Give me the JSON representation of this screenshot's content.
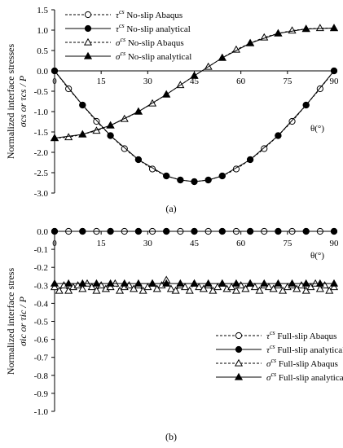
{
  "chart_data": [
    {
      "panel": "(a)",
      "type": "line",
      "xlabel": "θ(°)",
      "ylabel_line1": "Normalized interface stresses",
      "ylabel_line2": "σcs or τcs / P",
      "xlim": [
        0,
        90
      ],
      "ylim": [
        -3.0,
        1.5
      ],
      "xticks": [
        "0",
        "15",
        "30",
        "45",
        "60",
        "75",
        "90"
      ],
      "yticks": [
        "1.5",
        "1.0",
        "0.5",
        "0.0",
        "-0.5",
        "-1.0",
        "-1.5",
        "-2.0",
        "-2.5",
        "-3.0"
      ],
      "ytick_values": [
        1.5,
        1.0,
        0.5,
        0.0,
        -0.5,
        -1.0,
        -1.5,
        -2.0,
        -2.5,
        -3.0
      ],
      "legend_position": "top-left",
      "series": [
        {
          "name": "τcs No-slip Abaqus",
          "symbol": "τ",
          "sup": "cs",
          "desc": "No-slip Abaqus",
          "marker": "circle-open",
          "dash": true,
          "x": [
            0,
            4.5,
            9,
            13.5,
            18,
            22.5,
            27,
            31.5,
            36,
            40.5,
            45,
            49.5,
            54,
            58.5,
            63,
            67.5,
            72,
            76.5,
            81,
            85.5,
            90
          ],
          "y": [
            0.0,
            -0.44,
            -0.84,
            -1.24,
            -1.59,
            -1.91,
            -2.18,
            -2.41,
            -2.58,
            -2.68,
            -2.72,
            -2.68,
            -2.58,
            -2.41,
            -2.18,
            -1.91,
            -1.59,
            -1.24,
            -0.84,
            -0.44,
            0.0
          ]
        },
        {
          "name": "τcs No-slip analytical",
          "symbol": "τ",
          "sup": "cs",
          "desc": "No-slip analytical",
          "marker": "circle-filled",
          "dash": false,
          "x": [
            0,
            9,
            18,
            27,
            36,
            40.5,
            45,
            49.5,
            54,
            63,
            72,
            81,
            90
          ],
          "y": [
            0.0,
            -0.84,
            -1.59,
            -2.18,
            -2.58,
            -2.68,
            -2.72,
            -2.68,
            -2.58,
            -2.18,
            -1.59,
            -0.84,
            0.0
          ]
        },
        {
          "name": "σcs No-slip Abaqus",
          "symbol": "σ",
          "sup": "cs",
          "desc": "No-slip Abaqus",
          "marker": "triangle-open",
          "dash": true,
          "x": [
            0,
            4.5,
            9,
            13.5,
            18,
            22.5,
            27,
            31.5,
            36,
            40.5,
            45,
            49.5,
            54,
            58.5,
            63,
            67.5,
            72,
            76.5,
            81,
            85.5,
            90
          ],
          "y": [
            -1.65,
            -1.63,
            -1.56,
            -1.47,
            -1.34,
            -1.18,
            -1.0,
            -0.8,
            -0.58,
            -0.35,
            -0.12,
            0.1,
            0.32,
            0.52,
            0.68,
            0.82,
            0.92,
            0.99,
            1.03,
            1.05,
            1.05
          ]
        },
        {
          "name": "σcs No-slip analytical",
          "symbol": "σ",
          "sup": "cs",
          "desc": "No-slip analytical",
          "marker": "triangle-filled",
          "dash": false,
          "x": [
            0,
            9,
            18,
            27,
            36,
            45,
            54,
            63,
            72,
            81,
            90
          ],
          "y": [
            -1.65,
            -1.56,
            -1.34,
            -1.0,
            -0.58,
            -0.12,
            0.32,
            0.68,
            0.92,
            1.03,
            1.05
          ]
        }
      ]
    },
    {
      "panel": "(b)",
      "type": "line",
      "xlabel": "θ(°)",
      "ylabel_line1": "Normalized interface stress",
      "ylabel_line2": "σic or τic / P",
      "xlim": [
        0,
        90
      ],
      "ylim": [
        -1.0,
        0.0
      ],
      "xticks": [
        "0",
        "15",
        "30",
        "45",
        "60",
        "75",
        "90"
      ],
      "yticks": [
        "0.0",
        "-0.1",
        "-0.2",
        "-0.3",
        "-0.4",
        "-0.5",
        "-0.6",
        "-0.7",
        "-0.8",
        "-0.9",
        "-1.0"
      ],
      "ytick_values": [
        0.0,
        -0.1,
        -0.2,
        -0.3,
        -0.4,
        -0.5,
        -0.6,
        -0.7,
        -0.8,
        -0.9,
        -1.0
      ],
      "legend_position": "bottom-right",
      "series": [
        {
          "name": "τcs Full-slip Abaqus",
          "symbol": "τ",
          "sup": "cs",
          "desc": "Full-slip Abaqus",
          "marker": "circle-open",
          "dash": true,
          "x": [
            0,
            4.5,
            9,
            13.5,
            18,
            22.5,
            27,
            31.5,
            36,
            40.5,
            45,
            49.5,
            54,
            58.5,
            63,
            67.5,
            72,
            76.5,
            81,
            85.5,
            90
          ],
          "y": [
            0,
            0,
            0,
            0,
            0,
            0,
            0,
            0,
            0,
            0,
            0,
            0,
            0,
            0,
            0,
            0,
            0,
            0,
            0,
            0,
            0
          ]
        },
        {
          "name": "τcs Full-slip analytical",
          "symbol": "τ",
          "sup": "cs",
          "desc": "Full-slip analytical",
          "marker": "circle-filled",
          "dash": false,
          "x": [
            0,
            9,
            18,
            27,
            36,
            45,
            54,
            63,
            72,
            81,
            90
          ],
          "y": [
            0,
            0,
            0,
            0,
            0,
            0,
            0,
            0,
            0,
            0,
            0
          ]
        },
        {
          "name": "σcs Full-slip Abaqus",
          "symbol": "σ",
          "sup": "cs",
          "desc": "Full-slip Abaqus",
          "marker": "triangle-open",
          "dash": true,
          "x": [
            0,
            1.5,
            3,
            4.5,
            6,
            7.5,
            9,
            10.5,
            12,
            13.5,
            15,
            16.5,
            18,
            19.5,
            21,
            22.5,
            24,
            25.5,
            27,
            28.5,
            30,
            31.5,
            33,
            34.5,
            36,
            37.5,
            39,
            40.5,
            42,
            43.5,
            45,
            46.5,
            48,
            49.5,
            51,
            52.5,
            54,
            55.5,
            57,
            58.5,
            60,
            61.5,
            63,
            64.5,
            66,
            67.5,
            69,
            70.5,
            72,
            73.5,
            75,
            76.5,
            78,
            79.5,
            81,
            82.5,
            84,
            85.5,
            87,
            88.5,
            90
          ],
          "y": [
            -0.31,
            -0.33,
            -0.3,
            -0.33,
            -0.31,
            -0.3,
            -0.32,
            -0.29,
            -0.31,
            -0.33,
            -0.3,
            -0.32,
            -0.31,
            -0.29,
            -0.33,
            -0.31,
            -0.3,
            -0.32,
            -0.3,
            -0.33,
            -0.31,
            -0.29,
            -0.32,
            -0.3,
            -0.27,
            -0.32,
            -0.33,
            -0.3,
            -0.31,
            -0.33,
            -0.29,
            -0.31,
            -0.32,
            -0.3,
            -0.33,
            -0.31,
            -0.29,
            -0.32,
            -0.31,
            -0.33,
            -0.3,
            -0.32,
            -0.29,
            -0.31,
            -0.33,
            -0.3,
            -0.31,
            -0.32,
            -0.3,
            -0.33,
            -0.31,
            -0.3,
            -0.32,
            -0.3,
            -0.33,
            -0.31,
            -0.29,
            -0.32,
            -0.3,
            -0.33,
            -0.31
          ]
        },
        {
          "name": "σcs Full-slip analytical",
          "symbol": "σ",
          "sup": "cs",
          "desc": "Full-slip analytical",
          "marker": "triangle-filled",
          "dash": false,
          "x": [
            0,
            4.5,
            9,
            13.5,
            18,
            22.5,
            27,
            31.5,
            36,
            40.5,
            45,
            49.5,
            54,
            58.5,
            63,
            67.5,
            72,
            76.5,
            81,
            85.5,
            90
          ],
          "y": [
            -0.29,
            -0.29,
            -0.29,
            -0.29,
            -0.29,
            -0.29,
            -0.29,
            -0.29,
            -0.29,
            -0.29,
            -0.29,
            -0.29,
            -0.29,
            -0.29,
            -0.29,
            -0.29,
            -0.29,
            -0.29,
            -0.29,
            -0.29,
            -0.29
          ]
        }
      ]
    }
  ],
  "captions": [
    "(a)",
    "(b)"
  ]
}
